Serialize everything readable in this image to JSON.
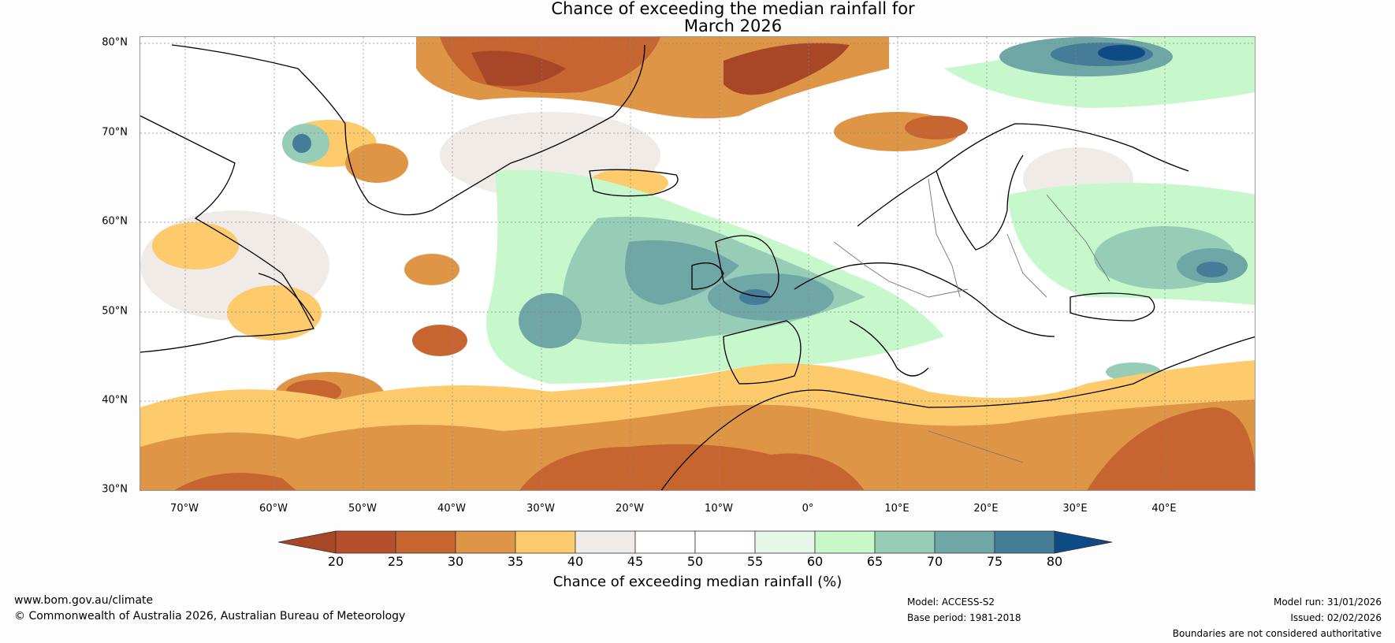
{
  "title": {
    "line1": "Chance of exceeding the median rainfall for",
    "line2": "March 2026"
  },
  "map": {
    "lat_labels": [
      "80°N",
      "70°N",
      "60°N",
      "50°N",
      "40°N",
      "30°N"
    ],
    "lon_labels": [
      "70°W",
      "60°W",
      "50°W",
      "40°W",
      "30°W",
      "20°W",
      "10°W",
      "0°",
      "10°E",
      "20°E",
      "30°E",
      "40°E"
    ]
  },
  "colorbar": {
    "tick_labels": [
      "20",
      "25",
      "30",
      "35",
      "40",
      "45",
      "50",
      "55",
      "60",
      "65",
      "70",
      "75",
      "80"
    ],
    "colors": [
      "#a84628",
      "#b64f2c",
      "#c6652f",
      "#df9546",
      "#fdcb6c",
      "#f1ebe7",
      "#ffffff",
      "#ffffff",
      "#e8f6e8",
      "#c6f8cc",
      "#97cdb6",
      "#6fa6a6",
      "#457c98",
      "#0e4a86"
    ],
    "label": "Chance of exceeding median rainfall (%)"
  },
  "footer": {
    "website": "www.bom.gov.au/climate",
    "copyright": "© Commonwealth of Australia 2026, Australian Bureau of Meteorology",
    "model": "Model: ACCESS-S2",
    "base_period": "Base period: 1981-2018",
    "model_run": "Model run: 31/01/2026",
    "issued": "Issued: 02/02/2026",
    "disclaimer": "Boundaries are not considered authoritative"
  }
}
